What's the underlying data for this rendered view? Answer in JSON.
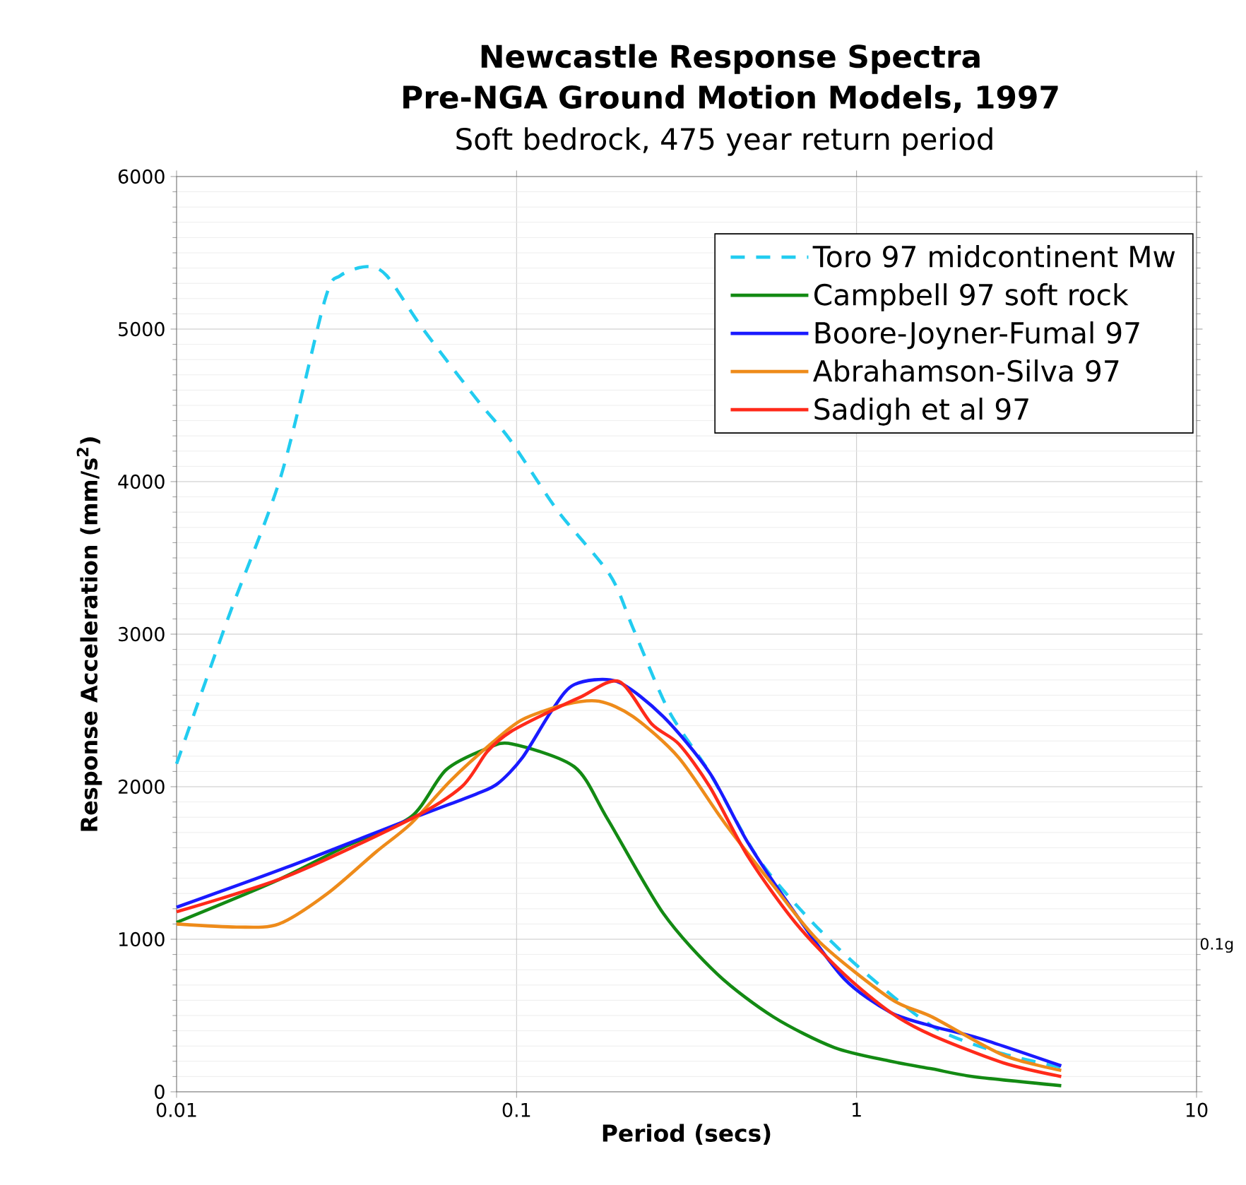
{
  "chart_data": {
    "type": "line",
    "title": "Newcastle Response Spectra Pre-NGA Ground Motion Models, 1997",
    "subtitle": "Soft bedrock, 475 year return period",
    "xlabel": "Period (secs)",
    "ylabel": "Response Acceleration (mm/s$^{2}$)",
    "log": "x",
    "xlim": [
      0.01,
      10
    ],
    "xticks": [
      0.01,
      0.1,
      1,
      10
    ],
    "ylim": [
      0,
      6000
    ],
    "yticks": [
      0,
      1000,
      2000,
      3000,
      4000,
      5000,
      6000
    ],
    "grid": true,
    "legend": "top right",
    "line_style": "solid",
    "annotations": [
      "0.1g"
    ],
    "series": [
      {
        "name": "Toro 97 midcontinent Mw",
        "color": "#22ccf0",
        "line_style": "dashed",
        "x": [
          0.01,
          0.0142,
          0.0203,
          0.0273,
          0.0303,
          0.0363,
          0.0415,
          0.0527,
          0.0757,
          0.096,
          0.132,
          0.188,
          0.22,
          0.28,
          0.37,
          0.51,
          0.7,
          1.0,
          1.67,
          2.6,
          4.0
        ],
        "values": [
          2150,
          3110,
          4040,
          5190,
          5350,
          5410,
          5350,
          5010,
          4550,
          4270,
          3810,
          3390,
          3040,
          2500,
          2090,
          1540,
          1170,
          830,
          430,
          260,
          160
        ]
      },
      {
        "name": "Campbell 97 soft rock",
        "color": "#138a13",
        "x": [
          0.01,
          0.0195,
          0.0315,
          0.0488,
          0.062,
          0.0817,
          0.097,
          0.148,
          0.185,
          0.27,
          0.39,
          0.57,
          0.86,
          1.26,
          1.67,
          2.2,
          4.0
        ],
        "values": [
          1110,
          1380,
          1610,
          1800,
          2110,
          2250,
          2280,
          2130,
          1790,
          1170,
          770,
          490,
          290,
          200,
          150,
          100,
          40
        ]
      },
      {
        "name": "Boore-Joyner-Fumal 97",
        "color": "#1a1aff",
        "x": [
          0.01,
          0.021,
          0.049,
          0.0757,
          0.088,
          0.104,
          0.127,
          0.148,
          0.197,
          0.27,
          0.37,
          0.48,
          0.66,
          0.92,
          1.26,
          1.67,
          2.3,
          4.0
        ],
        "values": [
          1210,
          1470,
          1790,
          1950,
          2020,
          2190,
          2500,
          2670,
          2690,
          2460,
          2090,
          1630,
          1170,
          740,
          520,
          430,
          350,
          170
        ]
      },
      {
        "name": "Abrahamson-Silva 97",
        "color": "#ee8b1a",
        "x": [
          0.01,
          0.015,
          0.02,
          0.0278,
          0.0385,
          0.049,
          0.064,
          0.085,
          0.104,
          0.14,
          0.175,
          0.22,
          0.3,
          0.41,
          0.57,
          0.78,
          1.26,
          1.67,
          2.7,
          4.0
        ],
        "values": [
          1100,
          1080,
          1100,
          1300,
          1570,
          1760,
          2040,
          2290,
          2440,
          2540,
          2560,
          2460,
          2190,
          1760,
          1350,
          980,
          610,
          490,
          240,
          140
        ]
      },
      {
        "name": "Sadigh et al 97",
        "color": "#ff2a1a",
        "x": [
          0.01,
          0.021,
          0.049,
          0.069,
          0.082,
          0.096,
          0.127,
          0.155,
          0.2,
          0.25,
          0.3,
          0.37,
          0.48,
          0.66,
          0.92,
          1.26,
          1.67,
          2.7,
          4.0
        ],
        "values": [
          1180,
          1410,
          1790,
          2000,
          2230,
          2360,
          2500,
          2590,
          2690,
          2410,
          2280,
          2000,
          1540,
          1110,
          770,
          520,
          370,
          190,
          100
        ]
      }
    ]
  }
}
